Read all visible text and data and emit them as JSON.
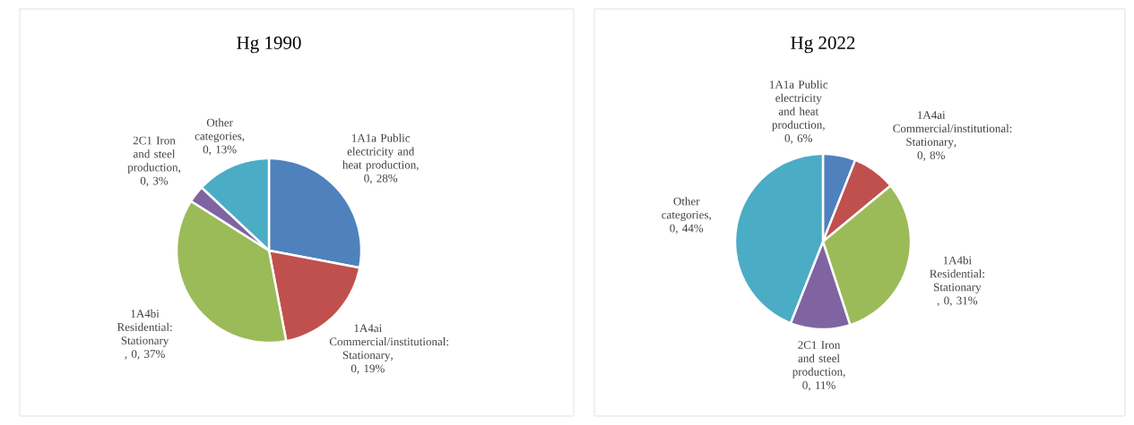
{
  "chart_data": [
    {
      "type": "pie",
      "title": "Hg 1990",
      "categories": [
        "1A1a Public electricity and heat production",
        "1A4ai Commercial/institutional: Stationary",
        "1A4bi Residential: Stationary ",
        "2C1 Iron and steel production",
        "Other categories"
      ],
      "values": [
        28,
        19,
        37,
        3,
        13
      ],
      "value_labels": [
        ", 0, 28%",
        ", 0, 19%",
        ", 0, 37%",
        ", 0, 3%",
        ", 0, 13%"
      ],
      "colors": [
        "#4f81bd",
        "#c0504d",
        "#9bbb59",
        "#8064a2",
        "#4bacc6"
      ]
    },
    {
      "type": "pie",
      "title": "Hg 2022",
      "categories": [
        "1A1a Public electricity and heat production",
        "1A4ai Commercial/institutional: Stationary",
        "1A4bi Residential: Stationary ",
        "2C1 Iron and steel production",
        "Other categories"
      ],
      "values": [
        6,
        8,
        31,
        11,
        44
      ],
      "value_labels": [
        ", 0, 6%",
        ", 0, 8%",
        ", 0, 31%",
        ", 0, 11%",
        ", 0, 44%"
      ],
      "colors": [
        "#4f81bd",
        "#c0504d",
        "#9bbb59",
        "#8064a2",
        "#4bacc6"
      ]
    }
  ]
}
